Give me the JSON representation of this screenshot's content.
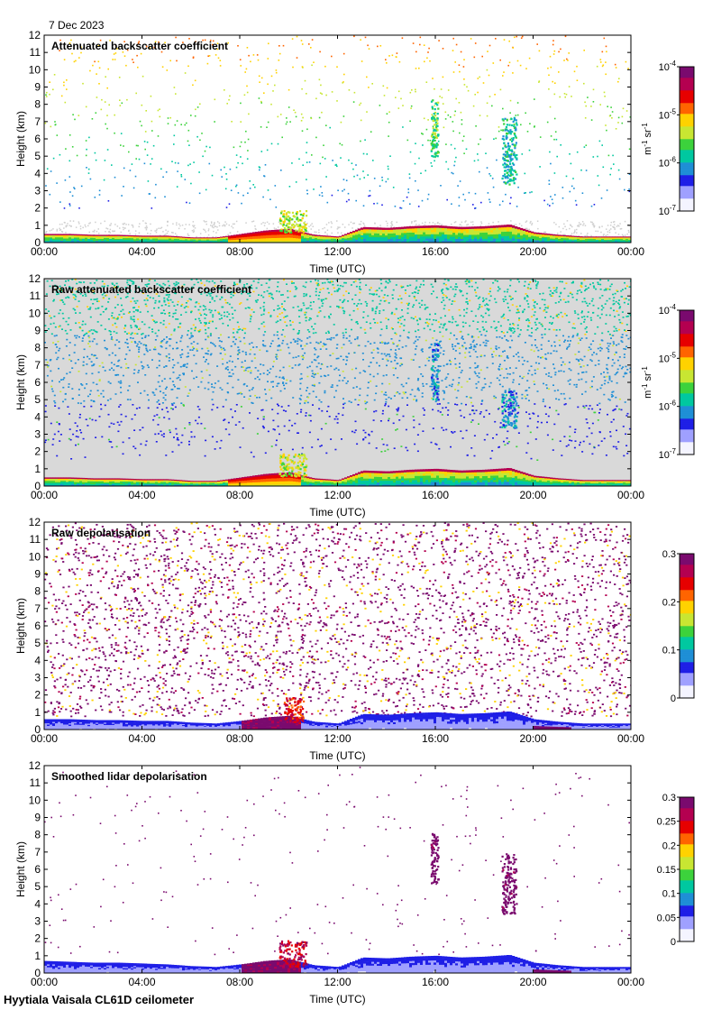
{
  "header": {
    "date": "7 Dec 2023"
  },
  "footer": {
    "site_instrument": "Hyytiala Vaisala CL61D ceilometer"
  },
  "colors": {
    "background": "#ffffff",
    "nodata_gray": "#d9d9d9",
    "colormap": [
      "#f4f4ff",
      "#9fa0ff",
      "#1f1fe6",
      "#1f8fd6",
      "#00c8a0",
      "#3cd23c",
      "#c8e632",
      "#ffd200",
      "#ff6400",
      "#e60000",
      "#b40050",
      "#7a0a6e"
    ]
  },
  "chart_data": [
    {
      "type": "heatmap",
      "title": "Attenuated backscatter coefficient",
      "xlabel": "Time (UTC)",
      "ylabel": "Height (km)",
      "x_ticks": [
        "00:00",
        "04:00",
        "08:00",
        "12:00",
        "16:00",
        "20:00",
        "00:00"
      ],
      "y_ticks": [
        0,
        1,
        2,
        3,
        4,
        5,
        6,
        7,
        8,
        9,
        10,
        11,
        12
      ],
      "xlim_hours": [
        0,
        24
      ],
      "ylim_km": [
        0,
        12
      ],
      "colorbar": {
        "scale": "log",
        "unit_parts": [
          "m",
          "-1",
          " sr",
          "-1"
        ],
        "ticks": [
          {
            "value": 1e-07,
            "base": "10",
            "exp": "-7"
          },
          {
            "value": 1e-06,
            "base": "10",
            "exp": "-6"
          },
          {
            "value": 1e-05,
            "base": "10",
            "exp": "-5"
          },
          {
            "value": 0.0001,
            "base": "10",
            "exp": "-4"
          }
        ],
        "range": [
          1e-07,
          0.0001
        ]
      },
      "features": {
        "noise": "sparse",
        "background": "white",
        "gray_low_layer": true
      },
      "time_hours": [
        0,
        1,
        2,
        3,
        4,
        5,
        6,
        7,
        8,
        9,
        10,
        11,
        12,
        13,
        14,
        15,
        16,
        17,
        18,
        19,
        20,
        21,
        22,
        23,
        24
      ],
      "boundary_layer_top_km": [
        0.5,
        0.5,
        0.45,
        0.45,
        0.4,
        0.4,
        0.3,
        0.3,
        0.5,
        0.7,
        0.8,
        0.45,
        0.35,
        0.9,
        0.85,
        0.95,
        1.0,
        0.9,
        0.95,
        1.05,
        0.6,
        0.45,
        0.35,
        0.35,
        0.35
      ],
      "cloud_patches": [
        {
          "t_start": 9.6,
          "t_end": 10.7,
          "base_km": 0.6,
          "top_km": 1.9,
          "level": 0.55
        },
        {
          "t_start": 15.8,
          "t_end": 16.1,
          "base_km": 5.0,
          "top_km": 8.3,
          "level": 0.45
        },
        {
          "t_start": 18.7,
          "t_end": 19.3,
          "base_km": 3.4,
          "top_km": 7.3,
          "level": 0.35
        }
      ]
    },
    {
      "type": "heatmap",
      "title": "Raw attenuated backscatter coefficient",
      "xlabel": "Time (UTC)",
      "ylabel": "Height (km)",
      "x_ticks": [
        "00:00",
        "04:00",
        "08:00",
        "12:00",
        "16:00",
        "20:00",
        "00:00"
      ],
      "y_ticks": [
        0,
        1,
        2,
        3,
        4,
        5,
        6,
        7,
        8,
        9,
        10,
        11,
        12
      ],
      "xlim_hours": [
        0,
        24
      ],
      "ylim_km": [
        0,
        12
      ],
      "colorbar": {
        "scale": "log",
        "unit_parts": [
          "m",
          "-1",
          " sr",
          "-1"
        ],
        "ticks": [
          {
            "value": 1e-07,
            "base": "10",
            "exp": "-7"
          },
          {
            "value": 1e-06,
            "base": "10",
            "exp": "-6"
          },
          {
            "value": 1e-05,
            "base": "10",
            "exp": "-5"
          },
          {
            "value": 0.0001,
            "base": "10",
            "exp": "-4"
          }
        ],
        "range": [
          1e-07,
          0.0001
        ]
      },
      "features": {
        "noise": "dense-blue",
        "background": "gray",
        "gray_low_layer": false
      },
      "time_hours": [
        0,
        1,
        2,
        3,
        4,
        5,
        6,
        7,
        8,
        9,
        10,
        11,
        12,
        13,
        14,
        15,
        16,
        17,
        18,
        19,
        20,
        21,
        22,
        23,
        24
      ],
      "boundary_layer_top_km": [
        0.5,
        0.5,
        0.45,
        0.45,
        0.4,
        0.4,
        0.3,
        0.3,
        0.5,
        0.7,
        0.8,
        0.45,
        0.35,
        0.9,
        0.85,
        0.95,
        1.0,
        0.9,
        0.95,
        1.05,
        0.6,
        0.45,
        0.35,
        0.35,
        0.35
      ],
      "cloud_patches": [
        {
          "t_start": 9.6,
          "t_end": 10.7,
          "base_km": 0.6,
          "top_km": 1.9,
          "level": 0.55
        },
        {
          "t_start": 15.8,
          "t_end": 16.1,
          "base_km": 5.0,
          "top_km": 8.3,
          "level": 0.3
        },
        {
          "t_start": 18.7,
          "t_end": 19.3,
          "base_km": 3.4,
          "top_km": 5.6,
          "level": 0.3
        }
      ]
    },
    {
      "type": "heatmap",
      "title": "Raw depolarisation",
      "xlabel": "Time (UTC)",
      "ylabel": "Height (km)",
      "x_ticks": [
        "00:00",
        "04:00",
        "08:00",
        "12:00",
        "16:00",
        "20:00",
        "00:00"
      ],
      "y_ticks": [
        0,
        1,
        2,
        3,
        4,
        5,
        6,
        7,
        8,
        9,
        10,
        11,
        12
      ],
      "xlim_hours": [
        0,
        24
      ],
      "ylim_km": [
        0,
        12
      ],
      "colorbar": {
        "scale": "linear",
        "unit_parts": [],
        "ticks": [
          {
            "value": 0,
            "label": "0"
          },
          {
            "value": 0.1,
            "label": "0.1"
          },
          {
            "value": 0.2,
            "label": "0.2"
          },
          {
            "value": 0.3,
            "label": "0.3"
          }
        ],
        "range": [
          0,
          0.3
        ]
      },
      "features": {
        "noise": "dense-purple",
        "background": "white",
        "gray_low_layer": false
      },
      "time_hours": [
        0,
        1,
        2,
        3,
        4,
        5,
        6,
        7,
        8,
        9,
        10,
        11,
        12,
        13,
        14,
        15,
        16,
        17,
        18,
        19,
        20,
        21,
        22,
        23,
        24
      ],
      "boundary_layer_top_km": [
        0.6,
        0.6,
        0.55,
        0.55,
        0.5,
        0.5,
        0.4,
        0.35,
        0.5,
        0.7,
        0.8,
        0.45,
        0.35,
        0.9,
        0.85,
        0.95,
        1.0,
        0.9,
        0.95,
        1.05,
        0.6,
        0.45,
        0.35,
        0.35,
        0.35
      ],
      "cloud_patches": [
        {
          "t_start": 9.8,
          "t_end": 10.6,
          "base_km": 0.4,
          "top_km": 1.9,
          "level": 0.8
        }
      ]
    },
    {
      "type": "heatmap",
      "title": "Smoothed lidar depolarisation",
      "xlabel": "Time (UTC)",
      "ylabel": "Height (km)",
      "x_ticks": [
        "00:00",
        "04:00",
        "08:00",
        "12:00",
        "16:00",
        "20:00",
        "00:00"
      ],
      "y_ticks": [
        0,
        1,
        2,
        3,
        4,
        5,
        6,
        7,
        8,
        9,
        10,
        11,
        12
      ],
      "xlim_hours": [
        0,
        24
      ],
      "ylim_km": [
        0,
        12
      ],
      "colorbar": {
        "scale": "linear",
        "unit_parts": [],
        "ticks": [
          {
            "value": 0,
            "label": "0"
          },
          {
            "value": 0.05,
            "label": "0.05"
          },
          {
            "value": 0.1,
            "label": "0.1"
          },
          {
            "value": 0.15,
            "label": "0.15"
          },
          {
            "value": 0.2,
            "label": "0.2"
          },
          {
            "value": 0.25,
            "label": "0.25"
          },
          {
            "value": 0.3,
            "label": "0.3"
          }
        ],
        "range": [
          0,
          0.3
        ]
      },
      "features": {
        "noise": "sparse-purple",
        "background": "white",
        "gray_low_layer": false
      },
      "time_hours": [
        0,
        1,
        2,
        3,
        4,
        5,
        6,
        7,
        8,
        9,
        10,
        11,
        12,
        13,
        14,
        15,
        16,
        17,
        18,
        19,
        20,
        21,
        22,
        23,
        24
      ],
      "boundary_layer_top_km": [
        0.7,
        0.65,
        0.6,
        0.6,
        0.55,
        0.5,
        0.4,
        0.35,
        0.5,
        0.7,
        0.8,
        0.45,
        0.35,
        0.9,
        0.85,
        0.95,
        1.0,
        0.9,
        0.95,
        1.05,
        0.6,
        0.45,
        0.35,
        0.35,
        0.35
      ],
      "cloud_patches": [
        {
          "t_start": 9.6,
          "t_end": 10.7,
          "base_km": 0.4,
          "top_km": 1.9,
          "level": 0.85
        },
        {
          "t_start": 15.8,
          "t_end": 16.1,
          "base_km": 5.2,
          "top_km": 8.1,
          "level": 1.0
        },
        {
          "t_start": 18.7,
          "t_end": 19.3,
          "base_km": 3.4,
          "top_km": 7.0,
          "level": 1.0
        }
      ]
    }
  ]
}
